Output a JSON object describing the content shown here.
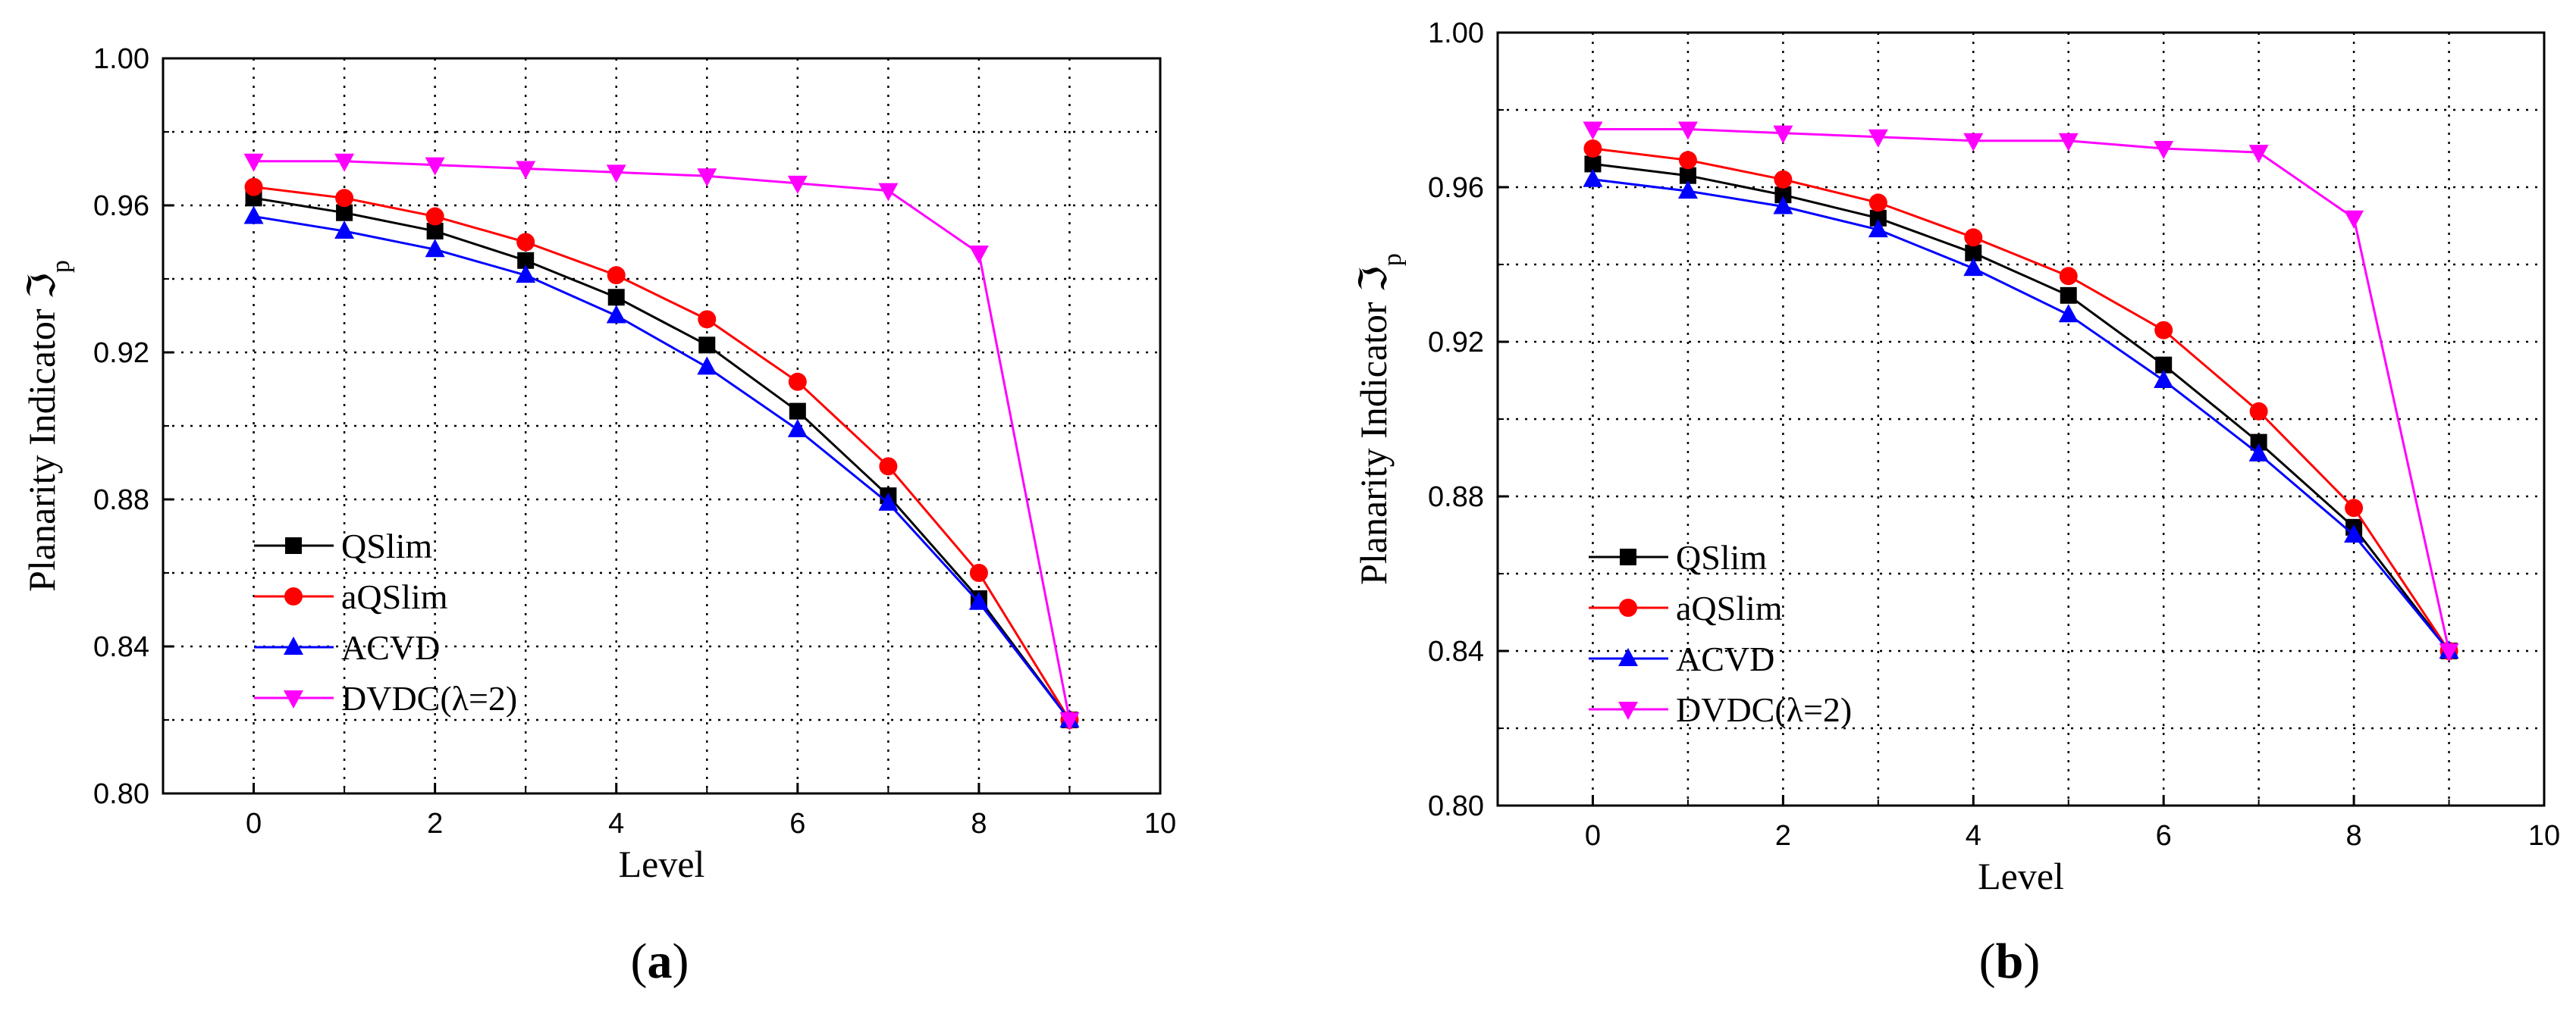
{
  "colors": {
    "QSlim": "#000000",
    "aQSlim": "#ff0000",
    "ACVD": "#0000ff",
    "DVDC": "#ff00ff",
    "grid": "#000000"
  },
  "panels": [
    {
      "label_open": "(",
      "label_letter": "a",
      "label_close": ")"
    },
    {
      "label_open": "(",
      "label_letter": "b",
      "label_close": ")"
    }
  ],
  "chart_data": [
    {
      "type": "line",
      "title": "",
      "xlabel": "Level",
      "ylabel": "Planarity Indicator ℑ",
      "ylabel_sub": "p",
      "xlim": [
        -1,
        10
      ],
      "ylim": [
        0.8,
        1.0
      ],
      "xticks": [
        0,
        2,
        4,
        6,
        8,
        10
      ],
      "xtick_labels": [
        "0",
        "2",
        "4",
        "6",
        "8",
        "10"
      ],
      "yticks": [
        0.8,
        0.84,
        0.88,
        0.92,
        0.96,
        1.0
      ],
      "ytick_labels": [
        "0.80",
        "0.84",
        "0.88",
        "0.92",
        "0.96",
        "1.00"
      ],
      "grid": true,
      "legend_position": "bottom-left",
      "x": [
        0,
        1,
        2,
        3,
        4,
        5,
        6,
        7,
        8,
        9
      ],
      "series": [
        {
          "name": "QSlim",
          "marker": "square",
          "values": [
            0.962,
            0.958,
            0.953,
            0.945,
            0.935,
            0.922,
            0.904,
            0.881,
            0.853,
            0.82
          ]
        },
        {
          "name": "aQSlim",
          "marker": "circle",
          "values": [
            0.965,
            0.962,
            0.957,
            0.95,
            0.941,
            0.929,
            0.912,
            0.889,
            0.86,
            0.82
          ]
        },
        {
          "name": "ACVD",
          "marker": "triangle-up",
          "values": [
            0.957,
            0.953,
            0.948,
            0.941,
            0.93,
            0.916,
            0.899,
            0.879,
            0.852,
            0.82
          ]
        },
        {
          "name": "DVDC(λ=2)",
          "marker": "triangle-down",
          "values": [
            0.972,
            0.972,
            0.971,
            0.97,
            0.969,
            0.968,
            0.966,
            0.964,
            0.947,
            0.82
          ]
        }
      ]
    },
    {
      "type": "line",
      "title": "",
      "xlabel": "Level",
      "ylabel": "Planarity Indicator ℑ",
      "ylabel_sub": "p",
      "xlim": [
        -1,
        10
      ],
      "ylim": [
        0.8,
        1.0
      ],
      "xticks": [
        0,
        2,
        4,
        6,
        8,
        10
      ],
      "xtick_labels": [
        "0",
        "2",
        "4",
        "6",
        "8",
        "10"
      ],
      "yticks": [
        0.8,
        0.84,
        0.88,
        0.92,
        0.96,
        1.0
      ],
      "ytick_labels": [
        "0.80",
        "0.84",
        "0.88",
        "0.92",
        "0.96",
        "1.00"
      ],
      "grid": true,
      "legend_position": "bottom-left",
      "x": [
        0,
        1,
        2,
        3,
        4,
        5,
        6,
        7,
        8,
        9
      ],
      "series": [
        {
          "name": "QSlim",
          "marker": "square",
          "values": [
            0.966,
            0.963,
            0.958,
            0.952,
            0.943,
            0.932,
            0.914,
            0.894,
            0.872,
            0.84
          ]
        },
        {
          "name": "aQSlim",
          "marker": "circle",
          "values": [
            0.97,
            0.967,
            0.962,
            0.956,
            0.947,
            0.937,
            0.923,
            0.902,
            0.877,
            0.84
          ]
        },
        {
          "name": "ACVD",
          "marker": "triangle-up",
          "values": [
            0.962,
            0.959,
            0.955,
            0.949,
            0.939,
            0.927,
            0.91,
            0.891,
            0.87,
            0.84
          ]
        },
        {
          "name": "DVDC(λ=2)",
          "marker": "triangle-down",
          "values": [
            0.975,
            0.975,
            0.974,
            0.973,
            0.972,
            0.972,
            0.97,
            0.969,
            0.952,
            0.84
          ]
        }
      ]
    }
  ]
}
